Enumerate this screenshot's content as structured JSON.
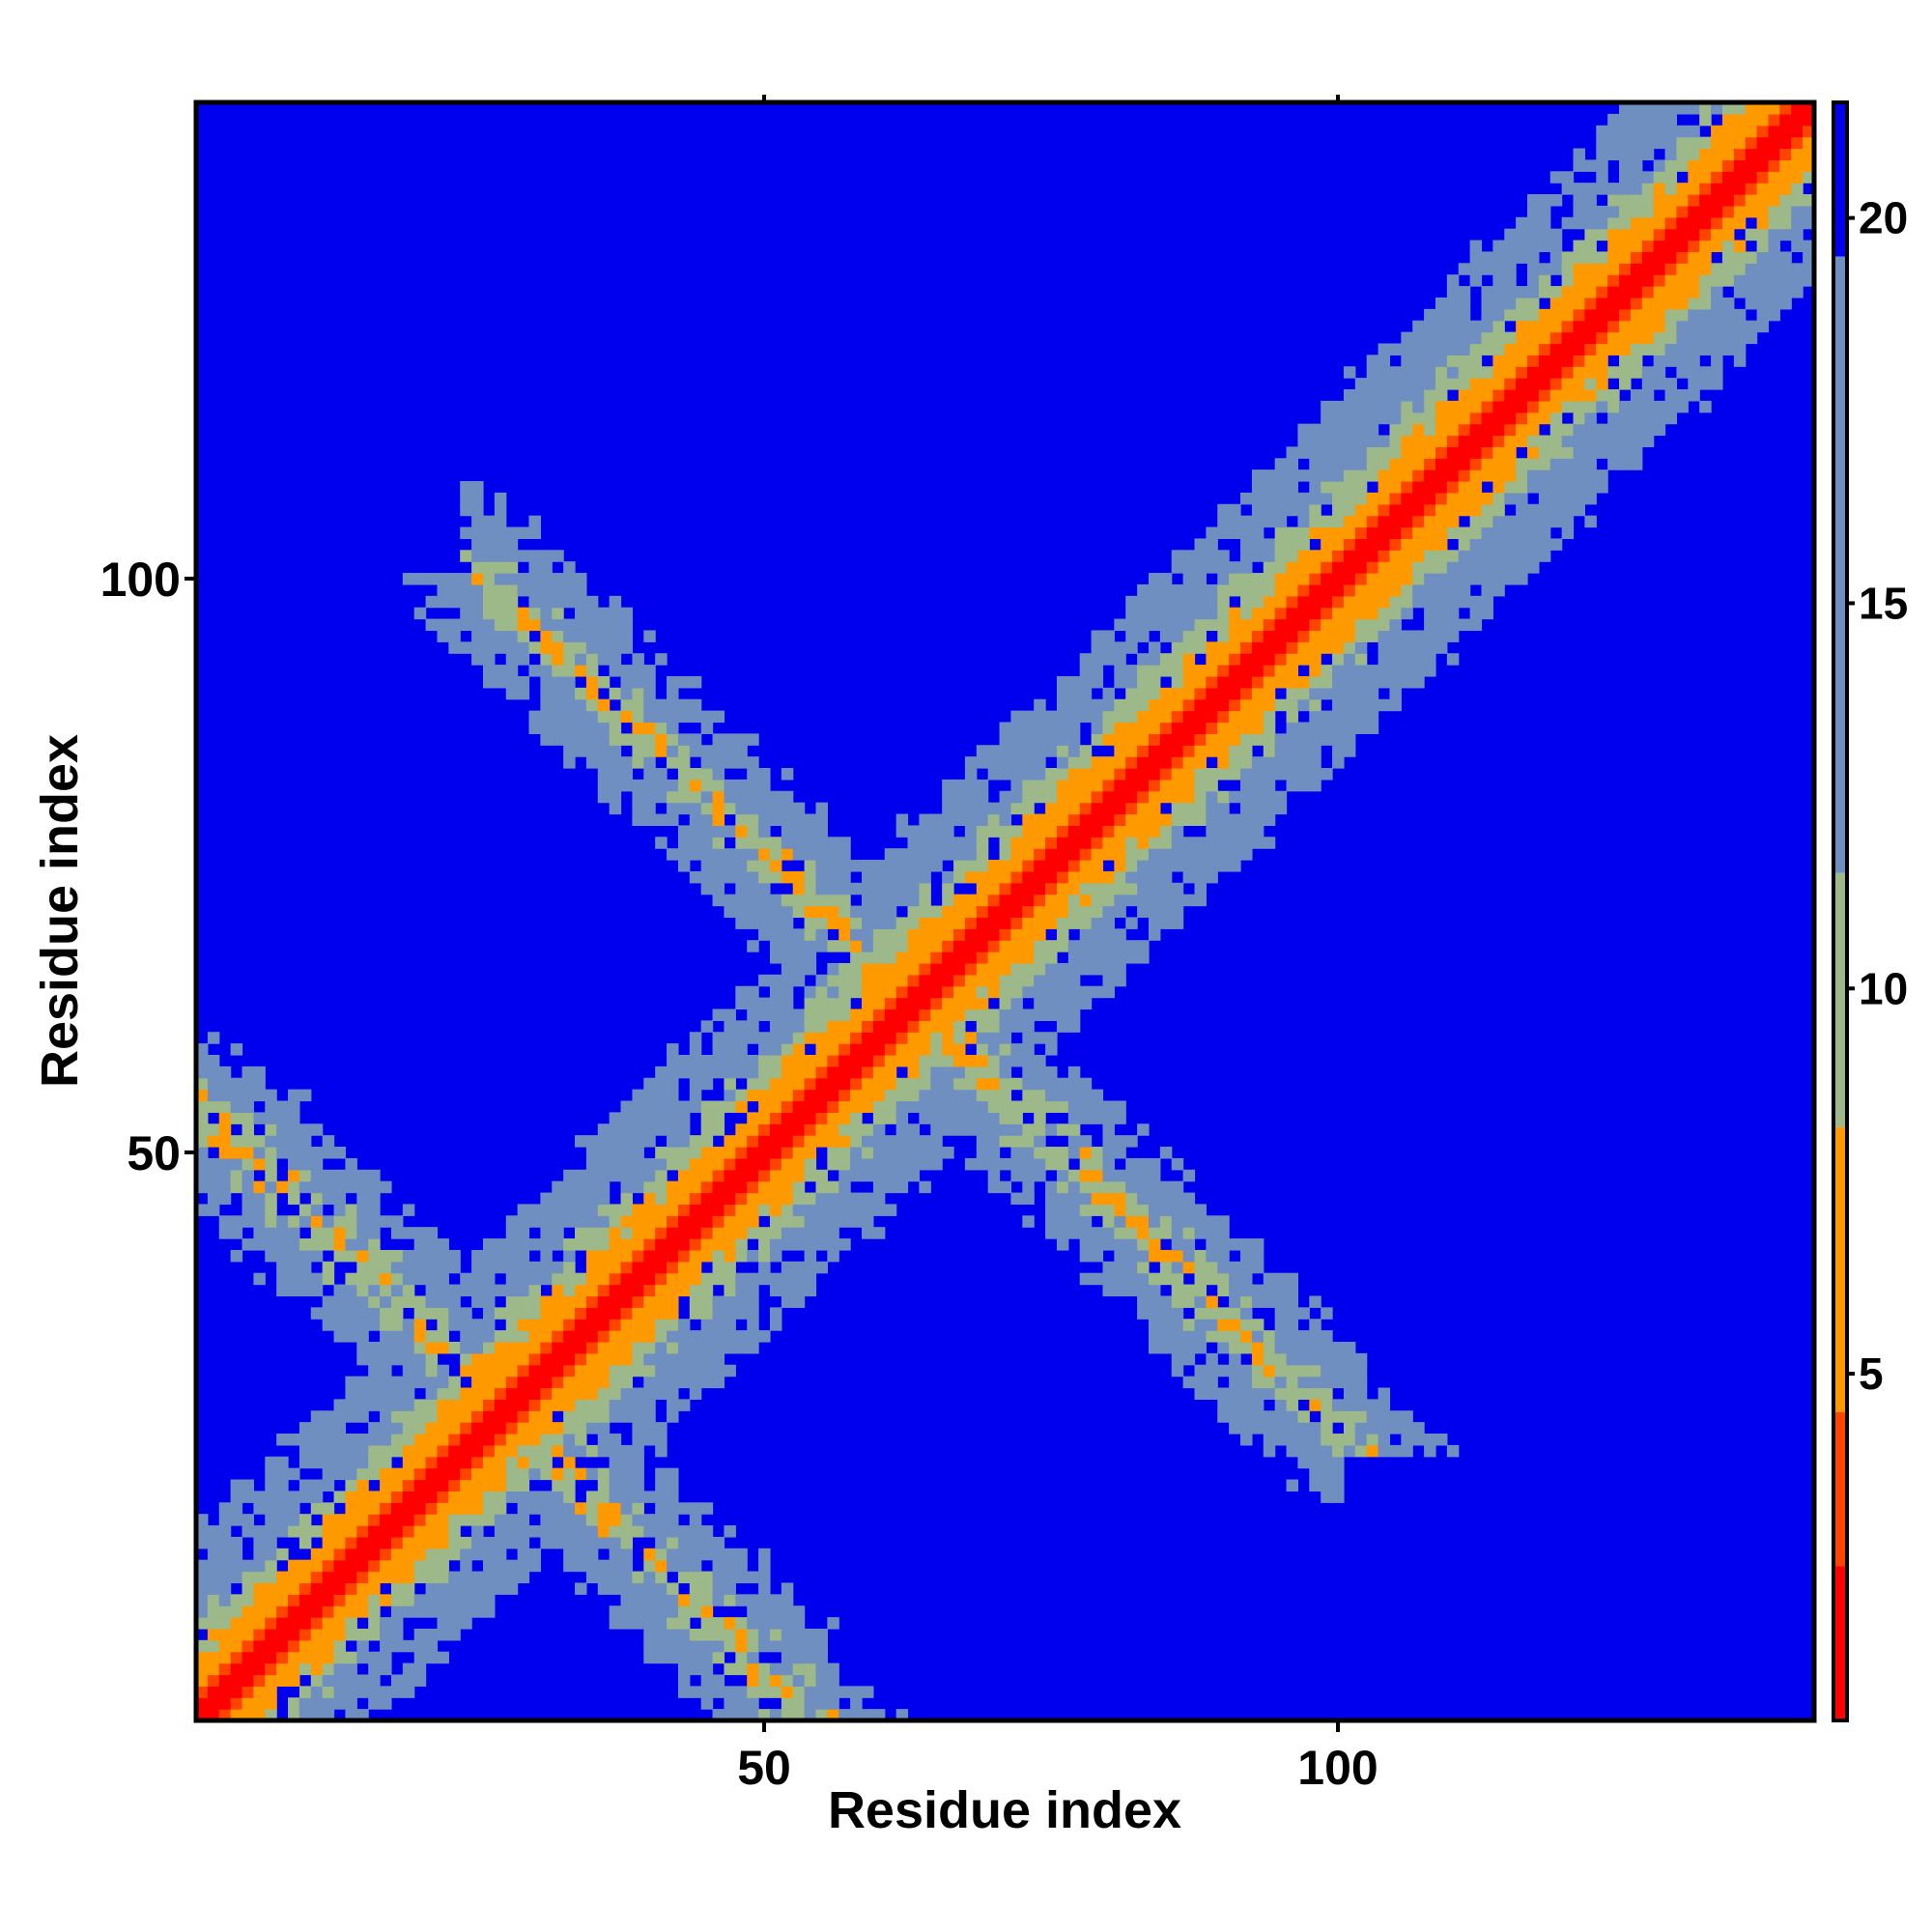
{
  "chart_data": {
    "type": "heatmap",
    "title": "",
    "xlabel": "Residue index",
    "ylabel": "Residue index",
    "n_residues": 141,
    "xlim": [
      1,
      141
    ],
    "ylim": [
      1,
      141
    ],
    "x_ticks": [
      50,
      100
    ],
    "y_ticks": [
      50,
      100
    ],
    "colorbar": {
      "range": [
        0.5,
        21.5
      ],
      "ticks": [
        5,
        10,
        15,
        20
      ],
      "orientation": "vertical",
      "placement": "right"
    },
    "colors": {
      "background_blue": "#0000ee",
      "near_red": "#ff0000",
      "orange_red": "#ff4400",
      "orange": "#ff9900",
      "sage": "#9db889",
      "steel": "#6f8fc0",
      "frame": "#000000"
    },
    "features": {
      "main_diagonal": "contacts along i≈j with distance increasing away from the diagonal",
      "antiparallel_contacts": [
        {
          "x_range": [
            26,
            98
          ],
          "y_range": [
            100,
            28
          ],
          "description": "anti-diagonal contact band (upper-left and lower-right arms)"
        },
        {
          "x_range": [
            1,
            55
          ],
          "y_range": [
            53,
            1
          ],
          "description": "anti-diagonal contact band near the origin"
        }
      ]
    }
  }
}
